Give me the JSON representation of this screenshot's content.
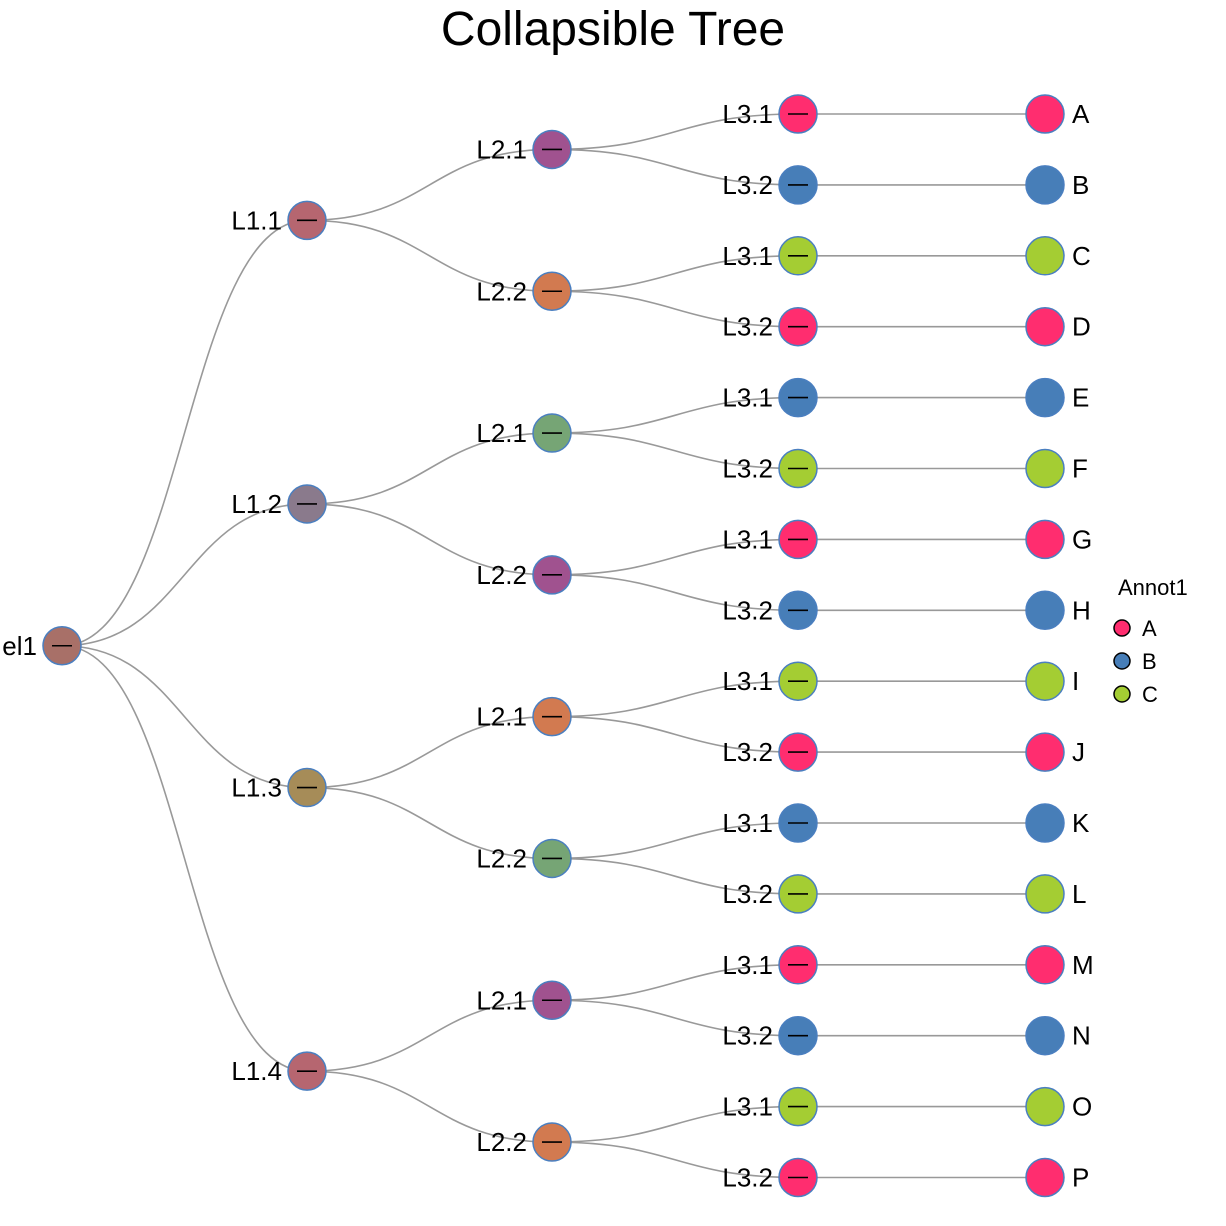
{
  "title": "Collapsible Tree",
  "colors": {
    "A": "#ff2d6f",
    "B": "#477eb8",
    "C": "#a4cd33",
    "link": "#999999",
    "node_stroke": "#4a7fc0"
  },
  "legend": {
    "title": "Annot1",
    "items": [
      {
        "label": "A",
        "color": "#ff2d6f"
      },
      {
        "label": "B",
        "color": "#477eb8"
      },
      {
        "label": "C",
        "color": "#a4cd33"
      }
    ]
  },
  "tree": {
    "name": "el1",
    "color": "#a87068",
    "children": [
      {
        "name": "L1.1",
        "color": "#b66670",
        "children": [
          {
            "name": "L2.1",
            "color": "#a0528f",
            "children": [
              {
                "name": "L3.1",
                "color": "#ff2d6f",
                "children": [
                  {
                    "name": "A",
                    "color": "#ff2d6f"
                  }
                ]
              },
              {
                "name": "L3.2",
                "color": "#477eb8",
                "children": [
                  {
                    "name": "B",
                    "color": "#477eb8"
                  }
                ]
              }
            ]
          },
          {
            "name": "L2.2",
            "color": "#d27a50",
            "children": [
              {
                "name": "L3.1",
                "color": "#a4cd33",
                "children": [
                  {
                    "name": "C",
                    "color": "#a4cd33"
                  }
                ]
              },
              {
                "name": "L3.2",
                "color": "#ff2d6f",
                "children": [
                  {
                    "name": "D",
                    "color": "#ff2d6f"
                  }
                ]
              }
            ]
          }
        ]
      },
      {
        "name": "L1.2",
        "color": "#8a7a8c",
        "children": [
          {
            "name": "L2.1",
            "color": "#76a575",
            "children": [
              {
                "name": "L3.1",
                "color": "#477eb8",
                "children": [
                  {
                    "name": "E",
                    "color": "#477eb8"
                  }
                ]
              },
              {
                "name": "L3.2",
                "color": "#a4cd33",
                "children": [
                  {
                    "name": "F",
                    "color": "#a4cd33"
                  }
                ]
              }
            ]
          },
          {
            "name": "L2.2",
            "color": "#a0528f",
            "children": [
              {
                "name": "L3.1",
                "color": "#ff2d6f",
                "children": [
                  {
                    "name": "G",
                    "color": "#ff2d6f"
                  }
                ]
              },
              {
                "name": "L3.2",
                "color": "#477eb8",
                "children": [
                  {
                    "name": "H",
                    "color": "#477eb8"
                  }
                ]
              }
            ]
          }
        ]
      },
      {
        "name": "L1.3",
        "color": "#a68c58",
        "children": [
          {
            "name": "L2.1",
            "color": "#d27a50",
            "children": [
              {
                "name": "L3.1",
                "color": "#a4cd33",
                "children": [
                  {
                    "name": "I",
                    "color": "#a4cd33"
                  }
                ]
              },
              {
                "name": "L3.2",
                "color": "#ff2d6f",
                "children": [
                  {
                    "name": "J",
                    "color": "#ff2d6f"
                  }
                ]
              }
            ]
          },
          {
            "name": "L2.2",
            "color": "#76a575",
            "children": [
              {
                "name": "L3.1",
                "color": "#477eb8",
                "children": [
                  {
                    "name": "K",
                    "color": "#477eb8"
                  }
                ]
              },
              {
                "name": "L3.2",
                "color": "#a4cd33",
                "children": [
                  {
                    "name": "L",
                    "color": "#a4cd33"
                  }
                ]
              }
            ]
          }
        ]
      },
      {
        "name": "L1.4",
        "color": "#b66670",
        "children": [
          {
            "name": "L2.1",
            "color": "#a0528f",
            "children": [
              {
                "name": "L3.1",
                "color": "#ff2d6f",
                "children": [
                  {
                    "name": "M",
                    "color": "#ff2d6f"
                  }
                ]
              },
              {
                "name": "L3.2",
                "color": "#477eb8",
                "children": [
                  {
                    "name": "N",
                    "color": "#477eb8"
                  }
                ]
              }
            ]
          },
          {
            "name": "L2.2",
            "color": "#d27a50",
            "children": [
              {
                "name": "L3.1",
                "color": "#a4cd33",
                "children": [
                  {
                    "name": "O",
                    "color": "#a4cd33"
                  }
                ]
              },
              {
                "name": "L3.2",
                "color": "#ff2d6f",
                "children": [
                  {
                    "name": "P",
                    "color": "#ff2d6f"
                  }
                ]
              }
            ]
          }
        ]
      }
    ]
  }
}
